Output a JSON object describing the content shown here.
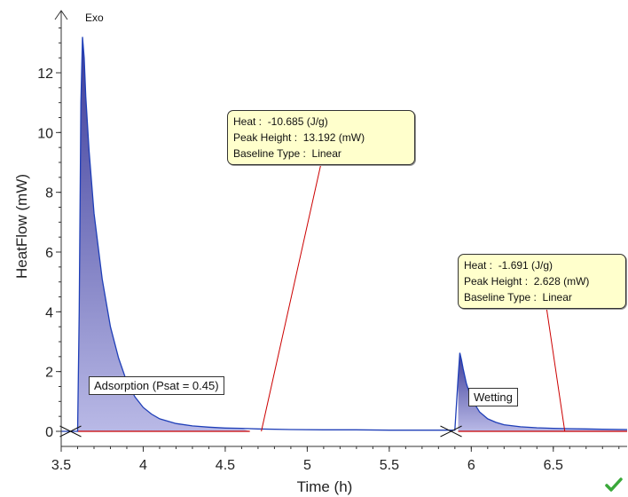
{
  "chart_data": {
    "type": "area",
    "title": "",
    "xlabel": "Time (h)",
    "ylabel": "HeatFlow (mW)",
    "direction_label": "Exo",
    "xlim": [
      3.5,
      6.95
    ],
    "ylim": [
      -0.3,
      14.1
    ],
    "x_ticks": [
      3.5,
      4,
      4.5,
      5,
      5.5,
      6,
      6.5
    ],
    "x_tick_labels": [
      "3.5",
      "4",
      "4.5",
      "5",
      "5.5",
      "6",
      "6.5"
    ],
    "y_ticks": [
      0,
      2,
      4,
      6,
      8,
      10,
      12
    ],
    "y_tick_labels": [
      "0",
      "2",
      "4",
      "6",
      "8",
      "10",
      "12"
    ],
    "grid": false,
    "colors": {
      "curve": "#1f3fb8",
      "fill": "#4a4aa0",
      "baseline": "#cc0000",
      "leader": "#cc0000",
      "callout_bg": "#ffffcc",
      "check": "#3aa83a"
    },
    "series": [
      {
        "x": [
          3.5,
          3.6,
          3.61,
          3.62,
          3.63,
          3.64,
          3.65,
          3.67,
          3.7,
          3.75,
          3.8,
          3.85,
          3.9,
          3.95,
          4.0,
          4.05,
          4.1,
          4.2,
          4.3,
          4.4,
          4.5,
          4.6,
          4.7,
          4.9,
          5.1,
          5.3,
          5.5,
          5.7,
          5.9,
          5.92,
          5.93,
          5.94,
          5.95,
          5.97,
          6.0,
          6.05,
          6.1,
          6.15,
          6.2,
          6.3,
          6.4,
          6.5,
          6.6,
          6.7,
          6.8,
          6.95
        ],
        "y": [
          0,
          0,
          4.0,
          11.0,
          13.2,
          12.5,
          11.2,
          9.4,
          7.3,
          5.1,
          3.5,
          2.45,
          1.65,
          1.15,
          0.8,
          0.58,
          0.42,
          0.26,
          0.18,
          0.14,
          0.11,
          0.1,
          0.08,
          0.06,
          0.05,
          0.05,
          0.04,
          0.04,
          0.04,
          1.8,
          2.63,
          2.4,
          2.1,
          1.6,
          1.1,
          0.65,
          0.42,
          0.3,
          0.22,
          0.15,
          0.12,
          0.1,
          0.09,
          0.08,
          0.07,
          0.06
        ]
      }
    ],
    "peaks": [
      {
        "name": "Adsorption (Psat = 0.45)",
        "heat_label": "Heat :",
        "heat_value": "-10.685 (J/g)",
        "peak_height_label": "Peak Height :",
        "peak_height_value": "13.192 (mW)",
        "baseline_label": "Baseline Type :",
        "baseline_value": "Linear",
        "integration_start": 3.6,
        "integration_end": 4.65,
        "leader_target_x": 4.72,
        "leader_target_y": 0
      },
      {
        "name": "Wetting",
        "heat_label": "Heat :",
        "heat_value": "-1.691 (J/g)",
        "peak_height_label": "Peak Height :",
        "peak_height_value": "2.628 (mW)",
        "baseline_label": "Baseline Type :",
        "baseline_value": "Linear",
        "integration_start": 5.92,
        "integration_end": 6.95,
        "leader_target_x": 6.57,
        "leader_target_y": 0
      }
    ]
  }
}
